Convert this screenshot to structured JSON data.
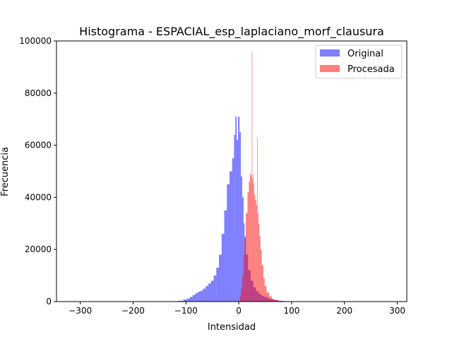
{
  "chart_data": {
    "type": "bar",
    "title": "Histograma - ESPACIAL_esp_laplaciano_morf_clausura",
    "xlabel": "Intensidad",
    "ylabel": "Frecuencia",
    "xlim": [
      -345,
      318
    ],
    "ylim": [
      0,
      100000
    ],
    "xticks": [
      -300,
      -200,
      -100,
      0,
      100,
      200,
      300
    ],
    "xtick_labels": [
      "−300",
      "−200",
      "−100",
      "0",
      "100",
      "200",
      "300"
    ],
    "yticks": [
      0,
      20000,
      40000,
      60000,
      80000,
      100000
    ],
    "ytick_labels": [
      "0",
      "20000",
      "40000",
      "60000",
      "80000",
      "100000"
    ],
    "grid": false,
    "legend": {
      "placement": "top-right"
    },
    "series": [
      {
        "name": "Original",
        "color": "#0000ff",
        "alpha": 0.5,
        "x": [
          -110,
          -100,
          -95,
          -90,
          -85,
          -80,
          -75,
          -70,
          -65,
          -60,
          -55,
          -50,
          -45,
          -40,
          -35,
          -30,
          -25,
          -20,
          -15,
          -10,
          -8,
          -5,
          -3,
          0,
          3,
          5,
          8,
          10,
          12,
          15,
          20,
          25,
          30,
          35,
          40,
          45,
          50,
          55,
          60,
          70,
          80,
          90,
          100
        ],
        "values": [
          300,
          800,
          1200,
          1800,
          2500,
          3200,
          3800,
          4200,
          5000,
          6000,
          7000,
          8000,
          10000,
          13000,
          18000,
          26000,
          35000,
          45000,
          50000,
          55000,
          64000,
          71000,
          62000,
          71000,
          65000,
          48000,
          40000,
          30000,
          25000,
          18000,
          12000,
          8000,
          5500,
          4000,
          3000,
          2200,
          1800,
          1400,
          1000,
          600,
          300,
          150,
          50
        ]
      },
      {
        "name": "Procesada",
        "color": "#ff0000",
        "alpha": 0.5,
        "x": [
          3,
          5,
          8,
          10,
          12,
          15,
          18,
          20,
          22,
          24,
          25,
          26,
          27,
          28,
          30,
          32,
          34,
          35,
          36,
          38,
          40,
          42,
          45,
          48,
          50,
          55,
          60,
          65,
          70,
          80,
          90
        ],
        "values": [
          2000,
          5000,
          10000,
          18000,
          24000,
          34000,
          42000,
          46000,
          49000,
          48000,
          96000,
          47000,
          49000,
          45000,
          41000,
          39000,
          37000,
          63000,
          34000,
          30000,
          25000,
          20000,
          14000,
          9000,
          6000,
          3500,
          2000,
          1000,
          500,
          200,
          50
        ]
      }
    ]
  }
}
